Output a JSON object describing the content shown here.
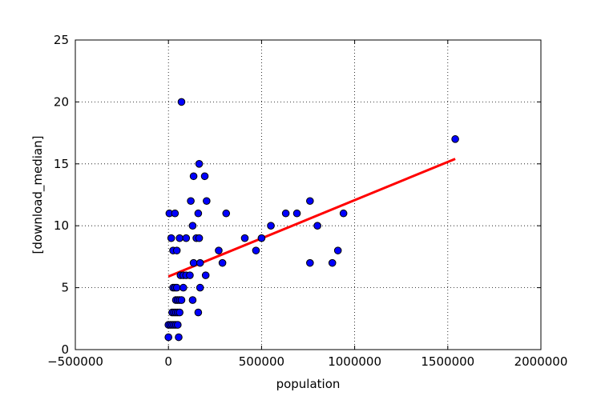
{
  "chart_data": {
    "type": "scatter",
    "xlabel": "population",
    "ylabel": "[download_median]",
    "xlim": [
      -500000,
      2000000
    ],
    "ylim": [
      0,
      25
    ],
    "x_ticks": [
      -500000,
      0,
      500000,
      1000000,
      1500000,
      2000000
    ],
    "x_tick_labels": [
      "−500000",
      "0",
      "500000",
      "1000000",
      "1500000",
      "2000000"
    ],
    "y_ticks": [
      0,
      5,
      10,
      15,
      20,
      25
    ],
    "y_tick_labels": [
      "0",
      "5",
      "10",
      "15",
      "20",
      "25"
    ],
    "grid": true,
    "grid_style": "dotted",
    "marker_color": "#0000ff",
    "fit_line_color": "#ff0000",
    "series": [
      {
        "points": [
          [
            0,
            1
          ],
          [
            55000,
            1
          ],
          [
            0,
            2
          ],
          [
            10000,
            2
          ],
          [
            20000,
            2
          ],
          [
            30000,
            2
          ],
          [
            40000,
            2
          ],
          [
            50000,
            2
          ],
          [
            20000,
            3
          ],
          [
            30000,
            3
          ],
          [
            40000,
            3
          ],
          [
            50000,
            3
          ],
          [
            60000,
            3
          ],
          [
            160000,
            3
          ],
          [
            40000,
            4
          ],
          [
            50000,
            4
          ],
          [
            60000,
            4
          ],
          [
            70000,
            4
          ],
          [
            130000,
            4
          ],
          [
            25000,
            5
          ],
          [
            35000,
            5
          ],
          [
            45000,
            5
          ],
          [
            80000,
            5
          ],
          [
            170000,
            5
          ],
          [
            65000,
            6
          ],
          [
            80000,
            6
          ],
          [
            95000,
            6
          ],
          [
            115000,
            6
          ],
          [
            200000,
            6
          ],
          [
            135000,
            7
          ],
          [
            170000,
            7
          ],
          [
            290000,
            7
          ],
          [
            760000,
            7
          ],
          [
            880000,
            7
          ],
          [
            25000,
            8
          ],
          [
            45000,
            8
          ],
          [
            270000,
            8
          ],
          [
            470000,
            8
          ],
          [
            910000,
            8
          ],
          [
            15000,
            9
          ],
          [
            60000,
            9
          ],
          [
            95000,
            9
          ],
          [
            150000,
            9
          ],
          [
            165000,
            9
          ],
          [
            410000,
            9
          ],
          [
            500000,
            9
          ],
          [
            130000,
            10
          ],
          [
            550000,
            10
          ],
          [
            800000,
            10
          ],
          [
            5000,
            11
          ],
          [
            35000,
            11
          ],
          [
            160000,
            11
          ],
          [
            310000,
            11
          ],
          [
            630000,
            11
          ],
          [
            690000,
            11
          ],
          [
            940000,
            11
          ],
          [
            120000,
            12
          ],
          [
            205000,
            12
          ],
          [
            760000,
            12
          ],
          [
            135000,
            14
          ],
          [
            195000,
            14
          ],
          [
            165000,
            15
          ],
          [
            1540000,
            17
          ],
          [
            70000,
            20
          ]
        ]
      }
    ],
    "fit_line": {
      "x": [
        0,
        1540000
      ],
      "y": [
        5.9,
        15.4
      ]
    }
  }
}
